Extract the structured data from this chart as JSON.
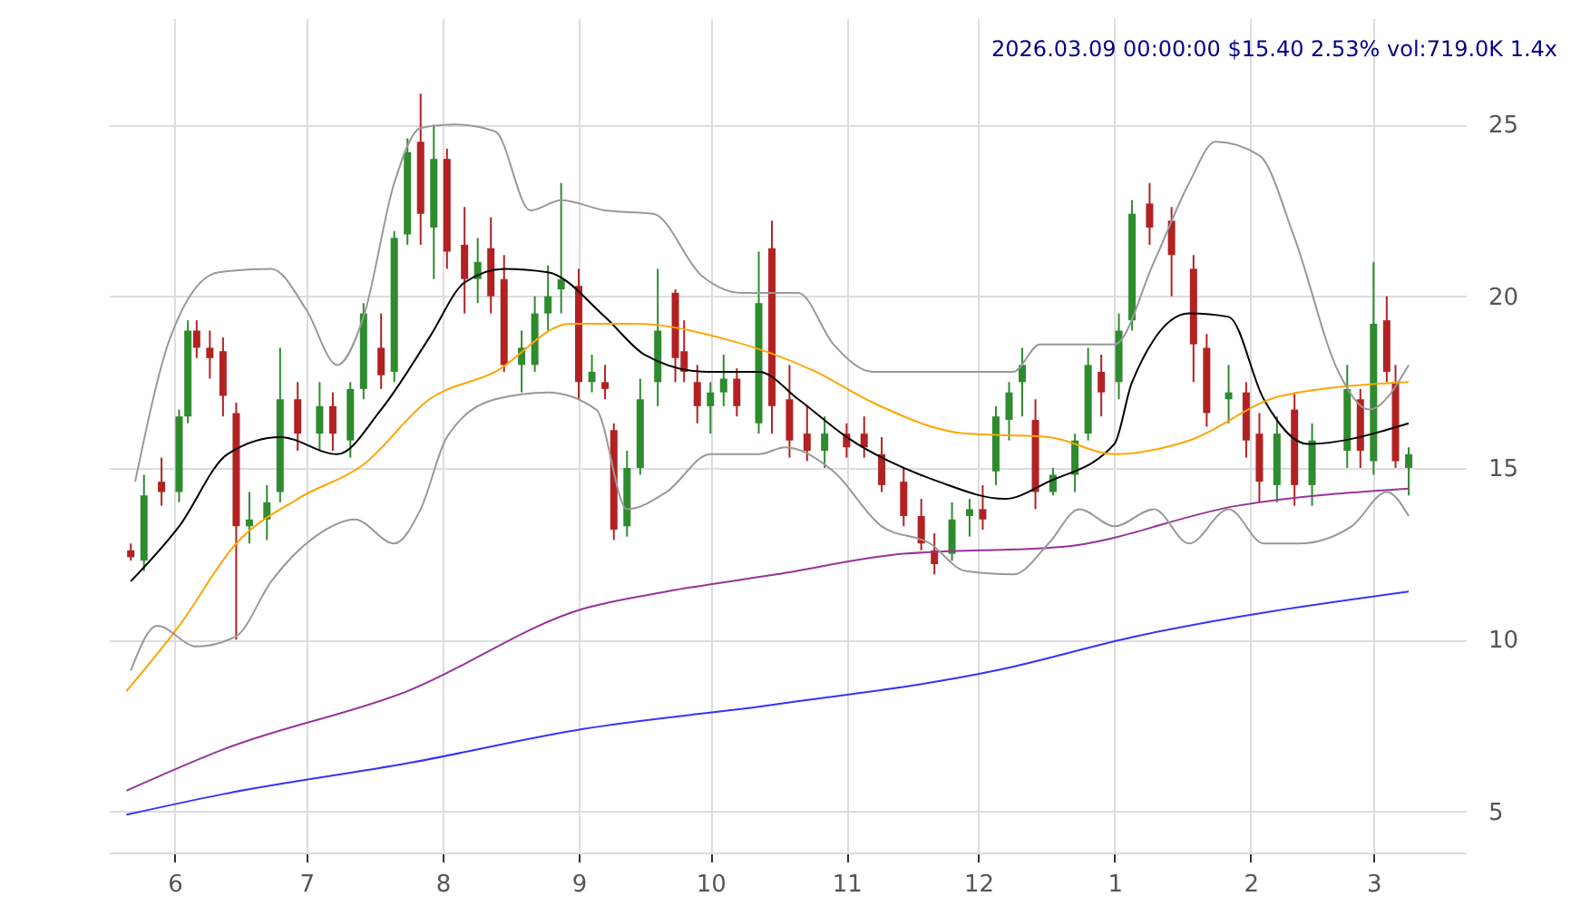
{
  "chart_data": {
    "type": "candlestick",
    "title": "2026.03.09 00:00:00 $15.40 2.53% vol:719.0K 1.4x",
    "x": [
      "2025-05-22",
      "2025-05-25",
      "2025-05-29",
      "2025-06-02",
      "2025-06-04",
      "2025-06-06",
      "2025-06-09",
      "2025-06-12",
      "2025-06-15",
      "2025-06-18",
      "2025-06-22",
      "2025-06-25",
      "2025-06-29",
      "2025-07-04",
      "2025-07-07",
      "2025-07-11",
      "2025-07-14",
      "2025-07-18",
      "2025-07-21",
      "2025-07-24",
      "2025-07-27",
      "2025-07-30",
      "2025-08-02",
      "2025-08-06",
      "2025-08-09",
      "2025-08-12",
      "2025-08-15",
      "2025-08-19",
      "2025-08-22",
      "2025-08-25",
      "2025-08-28",
      "2025-09-01",
      "2025-09-04",
      "2025-09-07",
      "2025-09-09",
      "2025-09-12",
      "2025-09-15",
      "2025-09-19",
      "2025-09-23",
      "2025-09-25",
      "2025-09-28",
      "2025-10-01",
      "2025-10-04",
      "2025-10-07",
      "2025-10-12",
      "2025-10-15",
      "2025-10-19",
      "2025-10-23",
      "2025-10-27",
      "2025-11-01",
      "2025-11-05",
      "2025-11-09",
      "2025-11-14",
      "2025-11-18",
      "2025-11-21",
      "2025-11-25",
      "2025-11-29",
      "2025-12-02",
      "2025-12-05",
      "2025-12-08",
      "2025-12-11",
      "2025-12-14",
      "2025-12-18",
      "2025-12-23",
      "2025-12-26",
      "2025-12-29",
      "2026-01-02",
      "2026-01-05",
      "2026-01-09",
      "2026-01-14",
      "2026-01-19",
      "2026-01-22",
      "2026-01-27",
      "2026-01-31",
      "2026-02-03",
      "2026-02-07",
      "2026-02-11",
      "2026-02-15",
      "2026-02-23",
      "2026-02-26",
      "2026-03-01",
      "2026-03-04",
      "2026-03-06",
      "2026-03-09"
    ],
    "ohlc": [
      [
        12.6,
        12.8,
        12.3,
        12.4
      ],
      [
        12.3,
        14.8,
        12.0,
        14.2
      ],
      [
        14.6,
        15.3,
        13.9,
        14.3
      ],
      [
        14.3,
        16.7,
        14.0,
        16.5
      ],
      [
        16.5,
        19.3,
        16.3,
        19.0
      ],
      [
        19.0,
        19.3,
        18.2,
        18.5
      ],
      [
        18.5,
        19.0,
        17.6,
        18.2
      ],
      [
        18.4,
        18.8,
        16.5,
        17.1
      ],
      [
        16.6,
        16.9,
        10.0,
        13.3
      ],
      [
        13.3,
        14.3,
        12.8,
        13.5
      ],
      [
        13.5,
        14.5,
        12.9,
        14.0
      ],
      [
        14.3,
        18.5,
        14.0,
        17.0
      ],
      [
        17.0,
        17.5,
        15.5,
        16.0
      ],
      [
        16.0,
        17.5,
        15.5,
        16.8
      ],
      [
        16.8,
        17.2,
        15.5,
        16.0
      ],
      [
        15.8,
        17.5,
        15.3,
        17.3
      ],
      [
        17.3,
        19.8,
        17.0,
        19.5
      ],
      [
        18.5,
        19.5,
        17.3,
        17.7
      ],
      [
        17.8,
        21.9,
        17.5,
        21.7
      ],
      [
        21.8,
        24.6,
        21.5,
        24.2
      ],
      [
        24.5,
        25.9,
        21.5,
        22.4
      ],
      [
        22.0,
        25.0,
        20.5,
        24.0
      ],
      [
        24.0,
        24.3,
        20.8,
        21.3
      ],
      [
        21.5,
        22.6,
        19.5,
        20.5
      ],
      [
        20.5,
        21.7,
        19.8,
        21.0
      ],
      [
        21.4,
        22.3,
        19.5,
        20.0
      ],
      [
        20.5,
        21.2,
        17.8,
        18.0
      ],
      [
        18.0,
        19.0,
        17.2,
        18.5
      ],
      [
        18.0,
        20.0,
        17.8,
        19.5
      ],
      [
        19.5,
        20.9,
        19.0,
        20.0
      ],
      [
        20.2,
        23.3,
        19.5,
        20.5
      ],
      [
        20.3,
        20.8,
        17.0,
        17.5
      ],
      [
        17.5,
        18.3,
        17.2,
        17.8
      ],
      [
        17.5,
        18.0,
        17.0,
        17.3
      ],
      [
        16.1,
        16.3,
        12.9,
        13.2
      ],
      [
        13.3,
        15.5,
        13.0,
        15.0
      ],
      [
        15.0,
        17.6,
        14.8,
        17.0
      ],
      [
        17.5,
        20.8,
        16.8,
        19.0
      ],
      [
        20.1,
        20.2,
        17.5,
        18.2
      ],
      [
        18.4,
        19.3,
        17.5,
        17.8
      ],
      [
        17.5,
        18.0,
        16.3,
        16.8
      ],
      [
        16.8,
        17.5,
        16.0,
        17.2
      ],
      [
        17.2,
        18.3,
        16.8,
        17.6
      ],
      [
        17.6,
        17.9,
        16.5,
        16.8
      ],
      [
        16.3,
        21.3,
        16.0,
        19.8
      ],
      [
        21.4,
        22.2,
        16.0,
        16.8
      ],
      [
        17.0,
        18.0,
        15.3,
        15.8
      ],
      [
        16.0,
        16.8,
        15.2,
        15.5
      ],
      [
        15.5,
        16.5,
        15.0,
        16.0
      ],
      [
        16.0,
        16.3,
        15.3,
        15.6
      ],
      [
        16.0,
        16.5,
        15.3,
        15.6
      ],
      [
        15.4,
        15.9,
        14.3,
        14.5
      ],
      [
        14.6,
        15.0,
        13.3,
        13.6
      ],
      [
        13.6,
        14.1,
        12.6,
        12.8
      ],
      [
        12.6,
        13.1,
        11.9,
        12.2
      ],
      [
        12.5,
        14.0,
        12.3,
        13.5
      ],
      [
        13.6,
        14.1,
        13.0,
        13.8
      ],
      [
        13.8,
        14.5,
        13.2,
        13.5
      ],
      [
        14.9,
        16.8,
        14.5,
        16.5
      ],
      [
        16.4,
        17.5,
        15.8,
        17.2
      ],
      [
        17.5,
        18.5,
        16.5,
        18.0
      ],
      [
        16.4,
        17.0,
        13.8,
        14.3
      ],
      [
        14.3,
        15.0,
        14.2,
        14.8
      ],
      [
        14.8,
        16.0,
        14.3,
        15.8
      ],
      [
        16.0,
        18.5,
        15.8,
        18.0
      ],
      [
        17.8,
        18.3,
        16.5,
        17.2
      ],
      [
        17.5,
        19.5,
        17.0,
        19.0
      ],
      [
        19.3,
        22.8,
        19.0,
        22.4
      ],
      [
        22.7,
        23.3,
        21.5,
        22.0
      ],
      [
        22.2,
        22.6,
        20.0,
        21.2
      ],
      [
        20.8,
        21.2,
        17.5,
        18.6
      ],
      [
        18.5,
        18.9,
        16.2,
        16.6
      ],
      [
        17.0,
        18.0,
        16.3,
        17.2
      ],
      [
        17.2,
        17.5,
        15.3,
        15.8
      ],
      [
        16.0,
        16.6,
        14.0,
        14.6
      ],
      [
        14.5,
        16.5,
        14.0,
        16.0
      ],
      [
        16.7,
        17.2,
        13.9,
        14.5
      ],
      [
        14.5,
        16.3,
        13.9,
        15.8
      ],
      [
        15.5,
        18.0,
        15.0,
        17.3
      ],
      [
        17.0,
        17.3,
        15.0,
        15.5
      ],
      [
        15.2,
        21.0,
        14.8,
        19.2
      ],
      [
        19.3,
        20.0,
        17.5,
        17.8
      ],
      [
        17.5,
        18.0,
        15.0,
        15.2
      ],
      [
        15.0,
        15.6,
        14.2,
        15.4
      ]
    ],
    "colors": [
      "#b22222",
      "#2e8b2e",
      "#b22222",
      "#2e8b2e",
      "#2e8b2e",
      "#b22222",
      "#b22222",
      "#b22222",
      "#b22222",
      "#2e8b2e",
      "#2e8b2e",
      "#2e8b2e",
      "#b22222",
      "#2e8b2e",
      "#b22222",
      "#2e8b2e",
      "#2e8b2e",
      "#b22222",
      "#2e8b2e",
      "#2e8b2e",
      "#b22222",
      "#2e8b2e",
      "#b22222",
      "#b22222",
      "#2e8b2e",
      "#b22222",
      "#b22222",
      "#2e8b2e",
      "#2e8b2e",
      "#2e8b2e",
      "#2e8b2e",
      "#b22222",
      "#2e8b2e",
      "#b22222",
      "#b22222",
      "#2e8b2e",
      "#2e8b2e",
      "#2e8b2e",
      "#b22222",
      "#b22222",
      "#b22222",
      "#2e8b2e",
      "#2e8b2e",
      "#b22222",
      "#2e8b2e",
      "#b22222",
      "#b22222",
      "#b22222",
      "#2e8b2e",
      "#b22222",
      "#b22222",
      "#b22222",
      "#b22222",
      "#b22222",
      "#b22222",
      "#2e8b2e",
      "#2e8b2e",
      "#b22222",
      "#2e8b2e",
      "#2e8b2e",
      "#2e8b2e",
      "#b22222",
      "#2e8b2e",
      "#2e8b2e",
      "#2e8b2e",
      "#b22222",
      "#2e8b2e",
      "#2e8b2e",
      "#b22222",
      "#b22222",
      "#b22222",
      "#b22222",
      "#2e8b2e",
      "#b22222",
      "#b22222",
      "#2e8b2e",
      "#b22222",
      "#2e8b2e",
      "#2e8b2e",
      "#b22222",
      "#2e8b2e",
      "#b22222",
      "#b22222",
      "#2e8b2e"
    ],
    "series": [
      {
        "type": "line",
        "color": "#000000",
        "x": [
          "2025-05-22",
          "2025-06-02",
          "2025-06-13",
          "2025-06-25",
          "2025-07-08",
          "2025-07-18",
          "2025-07-29",
          "2025-08-06",
          "2025-08-15",
          "2025-08-25",
          "2025-09-07",
          "2025-09-16",
          "2025-09-30",
          "2025-10-12",
          "2025-10-21",
          "2025-11-01",
          "2025-11-22",
          "2025-12-07",
          "2025-12-17",
          "2026-01-01",
          "2026-01-05",
          "2026-01-18",
          "2026-01-27",
          "2026-02-04",
          "2026-02-14",
          "2026-03-09"
        ],
        "values": [
          11.7,
          13.3,
          15.4,
          15.9,
          15.4,
          16.7,
          18.8,
          20.4,
          20.8,
          20.7,
          19.4,
          18.3,
          17.8,
          17.8,
          17.0,
          15.9,
          14.6,
          14.1,
          14.6,
          15.7,
          17.5,
          19.5,
          19.4,
          17.0,
          15.7,
          16.3
        ]
      },
      {
        "type": "line",
        "color": "#ffa500",
        "x": [
          "2025-05-21",
          "2025-06-02",
          "2025-06-15",
          "2025-06-29",
          "2025-07-14",
          "2025-07-29",
          "2025-08-13",
          "2025-08-30",
          "2025-09-14",
          "2025-10-03",
          "2025-10-25",
          "2025-11-07",
          "2025-11-28",
          "2025-12-17",
          "2026-01-01",
          "2026-01-18",
          "2026-02-08",
          "2026-03-09"
        ],
        "values": [
          8.5,
          10.4,
          12.8,
          14.1,
          15.1,
          17.0,
          17.8,
          19.2,
          19.2,
          18.8,
          17.8,
          16.9,
          16.0,
          15.9,
          15.4,
          15.8,
          17.1,
          17.5
        ]
      },
      {
        "type": "line",
        "color": "#993399",
        "x": [
          "2025-05-21",
          "2025-06-12",
          "2025-07-24",
          "2025-09-02",
          "2025-09-21",
          "2025-10-16",
          "2025-11-14",
          "2025-12-20",
          "2026-01-29",
          "2026-03-09"
        ],
        "values": [
          5.6,
          6.8,
          8.5,
          10.9,
          11.4,
          11.9,
          12.5,
          12.7,
          13.9,
          14.4
        ]
      },
      {
        "type": "line",
        "color": "#3333ff",
        "x": [
          "2025-05-21",
          "2025-06-12",
          "2025-07-24",
          "2025-09-02",
          "2025-10-15",
          "2025-12-05",
          "2026-01-06",
          "2026-03-09"
        ],
        "values": [
          4.9,
          5.5,
          6.4,
          7.4,
          8.1,
          9.1,
          10.1,
          11.4
        ]
      },
      {
        "type": "line",
        "color": "#999999",
        "x": [
          "2025-05-23",
          "2025-05-31",
          "2025-06-11",
          "2025-06-23",
          "2025-07-01",
          "2025-07-08",
          "2025-07-14",
          "2025-07-21",
          "2025-07-27",
          "2025-08-04",
          "2025-08-13",
          "2025-08-21",
          "2025-08-28",
          "2025-09-07",
          "2025-09-18",
          "2025-09-29",
          "2025-10-08",
          "2025-10-21",
          "2025-10-29",
          "2025-11-07",
          "2025-11-20",
          "2025-11-28",
          "2025-12-09",
          "2025-12-15",
          "2025-12-22",
          "2026-01-01",
          "2026-01-10",
          "2026-01-18",
          "2026-01-24",
          "2026-02-03",
          "2026-02-11",
          "2026-02-21",
          "2026-02-28",
          "2026-03-09"
        ],
        "values": [
          14.6,
          18.8,
          20.7,
          20.8,
          19.6,
          18.0,
          19.4,
          23.3,
          24.9,
          25.0,
          24.8,
          22.5,
          22.8,
          22.5,
          22.4,
          20.6,
          20.1,
          20.1,
          18.6,
          17.8,
          17.8,
          17.8,
          17.8,
          18.6,
          18.6,
          18.6,
          21.0,
          23.3,
          24.5,
          24.1,
          21.7,
          17.8,
          16.7,
          18.0
        ]
      },
      {
        "type": "line",
        "color": "#999999",
        "x": [
          "2025-05-22",
          "2025-05-28",
          "2025-06-06",
          "2025-06-15",
          "2025-06-23",
          "2025-07-03",
          "2025-07-12",
          "2025-07-21",
          "2025-07-27",
          "2025-08-02",
          "2025-08-13",
          "2025-08-25",
          "2025-09-05",
          "2025-09-12",
          "2025-09-21",
          "2025-10-01",
          "2025-10-12",
          "2025-10-18",
          "2025-10-29",
          "2025-11-09",
          "2025-11-20",
          "2025-11-28",
          "2025-12-09",
          "2025-12-17",
          "2025-12-24",
          "2026-01-01",
          "2026-01-10",
          "2026-01-18",
          "2026-01-27",
          "2026-02-04",
          "2026-02-12",
          "2026-02-24",
          "2026-03-04",
          "2026-03-09"
        ],
        "values": [
          9.1,
          10.4,
          9.8,
          10.1,
          11.7,
          13.0,
          13.5,
          12.8,
          13.8,
          15.9,
          17.0,
          17.2,
          16.7,
          13.8,
          14.3,
          15.4,
          15.4,
          15.6,
          14.9,
          13.3,
          12.8,
          12.0,
          11.9,
          12.8,
          13.8,
          13.3,
          13.8,
          12.8,
          13.8,
          12.8,
          12.8,
          13.3,
          14.3,
          13.6
        ]
      }
    ],
    "xlim": [
      "2025-05-17",
      "2026-03-22"
    ],
    "xticks": [
      {
        "value": "2025-06-01",
        "label": "6"
      },
      {
        "value": "2025-07-01",
        "label": "7"
      },
      {
        "value": "2025-08-01",
        "label": "8"
      },
      {
        "value": "2025-09-01",
        "label": "9"
      },
      {
        "value": "2025-10-01",
        "label": "10"
      },
      {
        "value": "2025-11-01",
        "label": "11"
      },
      {
        "value": "2025-12-01",
        "label": "12"
      },
      {
        "value": "2026-01-01",
        "label": "1"
      },
      {
        "value": "2026-02-01",
        "label": "2"
      },
      {
        "value": "2026-03-01",
        "label": "3"
      }
    ],
    "ylim": [
      3.8,
      28.1
    ],
    "yticks": [
      5,
      10,
      15,
      20,
      25
    ],
    "grid": true
  }
}
